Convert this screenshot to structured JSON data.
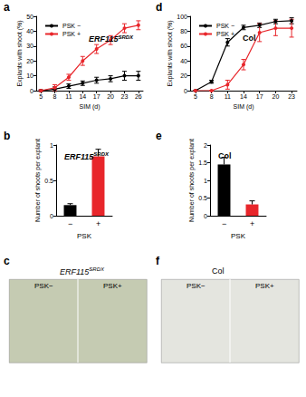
{
  "chart_data": [
    {
      "panel_label": "a",
      "type": "line",
      "title": "ERF115SRDX",
      "x": [
        5,
        8,
        11,
        14,
        17,
        20,
        23,
        26
      ],
      "x_label": "SIM (d)",
      "y_label": "Explants with shoot (%)",
      "xlim": [
        4,
        27
      ],
      "xticks": [
        5,
        8,
        11,
        14,
        17,
        20,
        23,
        26
      ],
      "ylim": [
        0,
        50
      ],
      "yticks": [
        0,
        10,
        20,
        30,
        40,
        50
      ],
      "legend": "upper left",
      "marker": "circle",
      "series": [
        {
          "name": "PSK −",
          "color": "#000000",
          "values": [
            0,
            1,
            3,
            5,
            7,
            8,
            10,
            10
          ],
          "errors": [
            0.5,
            1.5,
            1.5,
            1.5,
            2,
            2,
            3,
            3
          ]
        },
        {
          "name": "PSK +",
          "color": "#e8262b",
          "values": [
            0,
            2,
            9,
            20,
            28,
            34,
            42,
            44
          ],
          "errors": [
            0.5,
            2,
            2,
            3,
            3,
            3,
            3,
            3
          ]
        }
      ]
    },
    {
      "panel_label": "d",
      "type": "line",
      "title": "Col",
      "x": [
        5,
        8,
        11,
        14,
        17,
        20,
        23
      ],
      "x_label": "SIM (d)",
      "y_label": "Explants with shoot (%)",
      "xlim": [
        4,
        24
      ],
      "xticks": [
        5,
        8,
        11,
        14,
        17,
        20,
        23
      ],
      "ylim": [
        0,
        100
      ],
      "yticks": [
        0,
        20,
        40,
        60,
        80,
        100
      ],
      "legend": "upper left",
      "marker": "circle",
      "series": [
        {
          "name": "PSK −",
          "color": "#000000",
          "values": [
            0,
            12,
            65,
            85,
            88,
            93,
            94
          ],
          "errors": [
            0,
            2,
            5,
            3,
            3,
            3,
            4
          ]
        },
        {
          "name": "PSK +",
          "color": "#e8262b",
          "values": [
            0,
            0,
            8,
            35,
            78,
            84,
            84
          ],
          "errors": [
            0,
            0,
            6,
            7,
            12,
            10,
            12
          ]
        }
      ]
    },
    {
      "panel_label": "b",
      "type": "bar",
      "title": "ERF115SRDX",
      "categories": [
        "−",
        "+"
      ],
      "x_label": "PSK",
      "y_label": "Number of shoots per explant",
      "ylim": [
        0,
        1
      ],
      "yticks": [
        0,
        0.5,
        1
      ],
      "values": [
        0.15,
        0.84
      ],
      "errors": [
        0.02,
        0.1
      ],
      "colors": [
        "#000000",
        "#e8262b"
      ]
    },
    {
      "panel_label": "e",
      "type": "bar",
      "title": "Col",
      "categories": [
        "−",
        "+"
      ],
      "x_label": "PSK",
      "y_label": "Number of shoots per explant",
      "ylim": [
        0,
        2
      ],
      "yticks": [
        0,
        0.5,
        1,
        1.5,
        2
      ],
      "values": [
        1.45,
        0.32
      ],
      "errors": [
        0.2,
        0.1
      ],
      "colors": [
        "#000000",
        "#e8262b"
      ]
    }
  ],
  "photo_panels": [
    {
      "panel_label": "c",
      "title": "ERF115SRDX",
      "labels": [
        "PSK−",
        "PSK+"
      ]
    },
    {
      "panel_label": "f",
      "title": "Col",
      "labels": [
        "PSK−",
        "PSK+"
      ]
    }
  ]
}
